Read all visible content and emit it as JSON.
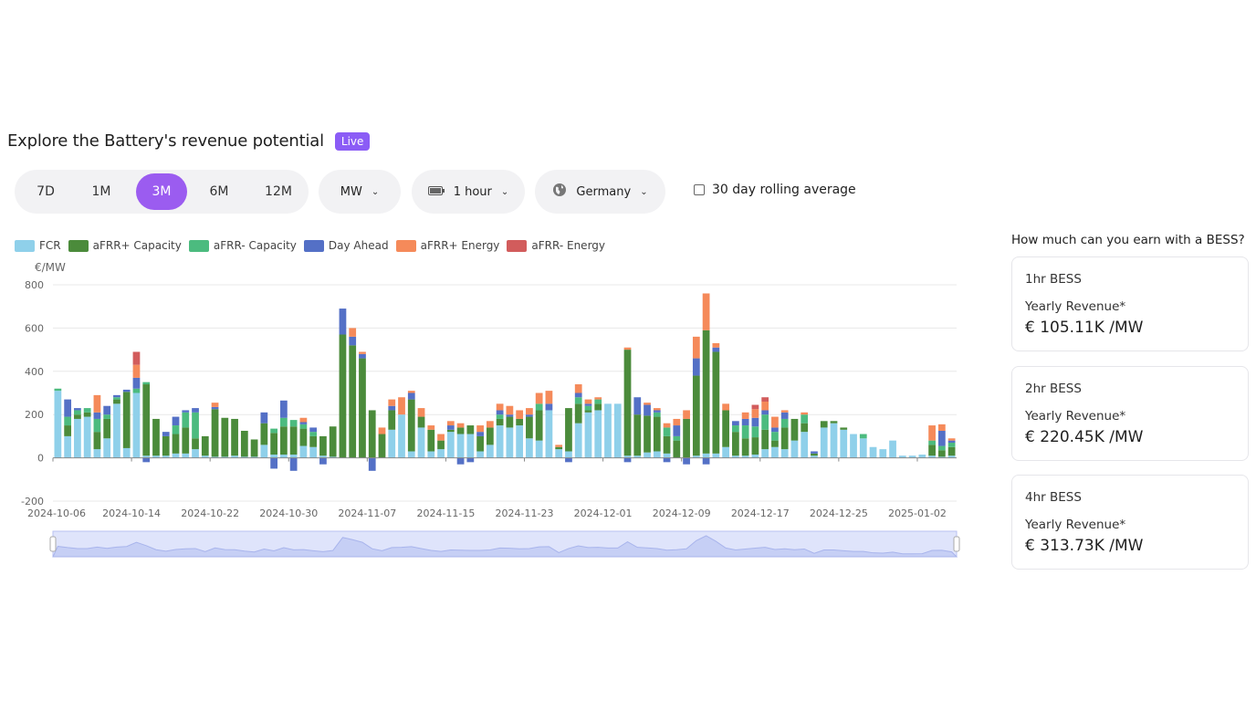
{
  "header": {
    "title": "Explore the Battery's revenue potential",
    "badge": "Live"
  },
  "controls": {
    "ranges": [
      "7D",
      "1M",
      "3M",
      "6M",
      "12M"
    ],
    "active_range": "3M",
    "unit": "MW",
    "duration": "1 hour",
    "region": "Germany",
    "rolling_label": "30 day rolling average",
    "rolling_checked": false
  },
  "side": {
    "heading": "How much can you earn with a BESS?",
    "cards": [
      {
        "title": "1hr BESS",
        "label": "Yearly Revenue*",
        "value": "€ 105.11K /MW"
      },
      {
        "title": "2hr BESS",
        "label": "Yearly Revenue*",
        "value": "€ 220.45K /MW"
      },
      {
        "title": "4hr BESS",
        "label": "Yearly Revenue*",
        "value": "€ 313.73K /MW"
      }
    ]
  },
  "colors": {
    "FCR": "#8fd0ea",
    "aFRR+ Capacity": "#4b8b3b",
    "aFRR- Capacity": "#4cbb7f",
    "Day Ahead": "#5470c6",
    "aFRR+ Energy": "#f58a5a",
    "aFRR- Energy": "#d25c5c",
    "accent": "#9b5cf0"
  },
  "chart_data": {
    "type": "bar",
    "stacked": true,
    "ylabel": "€/MW",
    "ylim": [
      -200,
      800
    ],
    "yticks": [
      800,
      600,
      400,
      200,
      0,
      -200
    ],
    "x_tick_labels": [
      "2024-10-06",
      "2024-10-14",
      "2024-10-22",
      "2024-10-30",
      "2024-11-07",
      "2024-11-15",
      "2024-11-23",
      "2024-12-01",
      "2024-12-09",
      "2024-12-17",
      "2024-12-25",
      "2025-01-02"
    ],
    "start_date": "2024-10-06",
    "legend": [
      "FCR",
      "aFRR+ Capacity",
      "aFRR- Capacity",
      "Day Ahead",
      "aFRR+ Energy",
      "aFRR- Energy"
    ],
    "legend_position": "top-left",
    "grid": true,
    "series": [
      {
        "name": "FCR",
        "values": [
          310,
          100,
          180,
          190,
          40,
          90,
          250,
          45,
          300,
          10,
          10,
          10,
          20,
          20,
          40,
          10,
          5,
          5,
          10,
          5,
          5,
          60,
          15,
          15,
          15,
          55,
          50,
          10,
          5,
          0,
          0,
          0,
          0,
          0,
          130,
          200,
          30,
          140,
          30,
          40,
          120,
          110,
          110,
          30,
          60,
          150,
          140,
          150,
          90,
          80,
          220,
          40,
          30,
          160,
          210,
          220,
          250,
          250,
          10,
          10,
          25,
          30,
          20,
          0,
          0,
          10,
          20,
          20,
          50,
          10,
          10,
          15,
          40,
          50,
          40,
          80,
          120,
          10,
          140,
          160,
          130,
          110,
          90,
          50,
          40,
          80,
          10,
          10,
          15,
          10,
          5,
          10
        ],
        "dates": [
          "2024-10-06",
          "2024-10-07",
          "2024-10-08",
          "2024-10-09",
          "2024-10-10",
          "2024-10-11",
          "2024-10-12",
          "2024-10-13",
          "2024-10-14",
          "2024-10-15",
          "2024-10-16",
          "2024-10-17",
          "2024-10-18",
          "2024-10-19",
          "2024-10-20",
          "2024-10-21",
          "2024-10-22",
          "2024-10-23",
          "2024-10-24",
          "2024-10-25",
          "2024-10-26",
          "2024-10-27",
          "2024-10-28",
          "2024-10-29",
          "2024-10-30",
          "2024-10-31",
          "2024-11-01",
          "2024-11-02",
          "2024-11-03",
          "2024-11-04",
          "2024-11-05",
          "2024-11-06",
          "2024-11-07",
          "2024-11-08",
          "2024-11-09",
          "2024-11-10",
          "2024-11-11",
          "2024-11-12",
          "2024-11-13",
          "2024-11-14",
          "2024-11-15",
          "2024-11-16",
          "2024-11-17",
          "2024-11-18",
          "2024-11-19",
          "2024-11-20",
          "2024-11-21",
          "2024-11-22",
          "2024-11-23",
          "2024-11-24",
          "2024-11-25",
          "2024-11-26",
          "2024-11-27",
          "2024-11-28",
          "2024-11-29",
          "2024-11-30",
          "2024-12-01",
          "2024-12-02",
          "2024-12-03",
          "2024-12-04",
          "2024-12-05",
          "2024-12-06",
          "2024-12-07",
          "2024-12-08",
          "2024-12-09",
          "2024-12-10",
          "2024-12-11",
          "2024-12-12",
          "2024-12-13",
          "2024-12-14",
          "2024-12-15",
          "2024-12-16",
          "2024-12-17",
          "2024-12-18",
          "2024-12-19",
          "2024-12-20",
          "2024-12-21",
          "2024-12-22",
          "2024-12-23",
          "2024-12-24",
          "2024-12-25",
          "2024-12-26",
          "2024-12-27",
          "2024-12-28",
          "2024-12-29",
          "2024-12-30",
          "2024-12-31",
          "2025-01-01",
          "2025-01-02",
          "2025-01-03",
          "2025-01-04",
          "2025-01-05"
        ]
      },
      {
        "name": "aFRR+ Capacity",
        "values": [
          0,
          50,
          20,
          20,
          80,
          90,
          20,
          260,
          0,
          330,
          170,
          90,
          90,
          120,
          50,
          90,
          220,
          180,
          170,
          120,
          80,
          100,
          100,
          130,
          130,
          80,
          50,
          90,
          140,
          570,
          520,
          460,
          220,
          110,
          90,
          0,
          240,
          50,
          100,
          40,
          10,
          30,
          40,
          70,
          80,
          30,
          50,
          30,
          100,
          140,
          0,
          10,
          200,
          90,
          10,
          30,
          0,
          0,
          490,
          190,
          170,
          160,
          80,
          80,
          180,
          370,
          570,
          470,
          170,
          110,
          80,
          80,
          90,
          30,
          100,
          100,
          40,
          10,
          30,
          10,
          10,
          0,
          0,
          0,
          0,
          0,
          0,
          0,
          0,
          50,
          30,
          40
        ],
        "dates": []
      },
      {
        "name": "aFRR- Capacity",
        "values": [
          10,
          40,
          20,
          20,
          60,
          20,
          10,
          0,
          20,
          10,
          0,
          0,
          40,
          70,
          120,
          0,
          0,
          0,
          0,
          0,
          0,
          0,
          20,
          40,
          30,
          20,
          20,
          0,
          0,
          0,
          0,
          0,
          0,
          0,
          0,
          0,
          0,
          0,
          0,
          0,
          0,
          0,
          0,
          0,
          0,
          20,
          0,
          0,
          0,
          30,
          0,
          0,
          0,
          30,
          20,
          20,
          0,
          0,
          0,
          0,
          0,
          20,
          40,
          20,
          0,
          0,
          0,
          0,
          0,
          30,
          60,
          50,
          70,
          40,
          40,
          0,
          40,
          0,
          0,
          0,
          0,
          0,
          20,
          0,
          0,
          0,
          0,
          0,
          0,
          20,
          20,
          20
        ],
        "dates": []
      },
      {
        "name": "Day Ahead",
        "values": [
          0,
          80,
          10,
          0,
          30,
          40,
          10,
          10,
          50,
          -20,
          0,
          20,
          40,
          10,
          20,
          0,
          10,
          0,
          0,
          0,
          0,
          50,
          -50,
          80,
          -60,
          10,
          20,
          -30,
          0,
          120,
          40,
          20,
          -60,
          0,
          20,
          0,
          30,
          0,
          0,
          0,
          20,
          -30,
          -20,
          20,
          0,
          20,
          10,
          0,
          10,
          0,
          30,
          0,
          -20,
          20,
          10,
          0,
          0,
          0,
          -20,
          80,
          50,
          10,
          -20,
          50,
          -30,
          80,
          -30,
          20,
          0,
          20,
          30,
          40,
          20,
          20,
          30,
          0,
          0,
          10,
          0,
          0,
          0,
          0,
          0,
          0,
          0,
          0,
          0,
          0,
          0,
          0,
          70,
          10
        ],
        "dates": []
      },
      {
        "name": "aFRR+ Energy",
        "values": [
          0,
          0,
          0,
          0,
          80,
          0,
          0,
          0,
          60,
          0,
          0,
          0,
          0,
          0,
          0,
          0,
          20,
          0,
          0,
          0,
          0,
          0,
          0,
          0,
          0,
          20,
          0,
          0,
          0,
          0,
          40,
          10,
          0,
          30,
          30,
          80,
          10,
          40,
          20,
          30,
          20,
          20,
          0,
          30,
          30,
          30,
          40,
          40,
          30,
          50,
          60,
          10,
          0,
          40,
          20,
          10,
          0,
          0,
          10,
          0,
          10,
          10,
          20,
          30,
          40,
          100,
          170,
          20,
          30,
          0,
          30,
          40,
          40,
          50,
          10,
          0,
          10,
          0,
          0,
          0,
          0,
          0,
          0,
          0,
          0,
          0,
          0,
          0,
          0,
          70,
          30,
          10
        ],
        "dates": []
      },
      {
        "name": "aFRR- Energy",
        "values": [
          0,
          0,
          0,
          0,
          0,
          0,
          0,
          0,
          60,
          0,
          0,
          0,
          0,
          0,
          0,
          0,
          0,
          0,
          0,
          0,
          0,
          0,
          0,
          0,
          0,
          0,
          0,
          0,
          0,
          0,
          0,
          0,
          0,
          0,
          0,
          0,
          0,
          0,
          0,
          0,
          0,
          0,
          0,
          0,
          0,
          0,
          0,
          0,
          0,
          0,
          0,
          0,
          0,
          0,
          0,
          0,
          0,
          0,
          0,
          0,
          0,
          0,
          0,
          0,
          0,
          0,
          0,
          0,
          0,
          0,
          0,
          20,
          20,
          0,
          0,
          0,
          0,
          0,
          0,
          0,
          0,
          0,
          0,
          0,
          0,
          0,
          0,
          0,
          0,
          0,
          0,
          0
        ],
        "dates": []
      }
    ]
  },
  "navigator": {
    "label": ""
  }
}
